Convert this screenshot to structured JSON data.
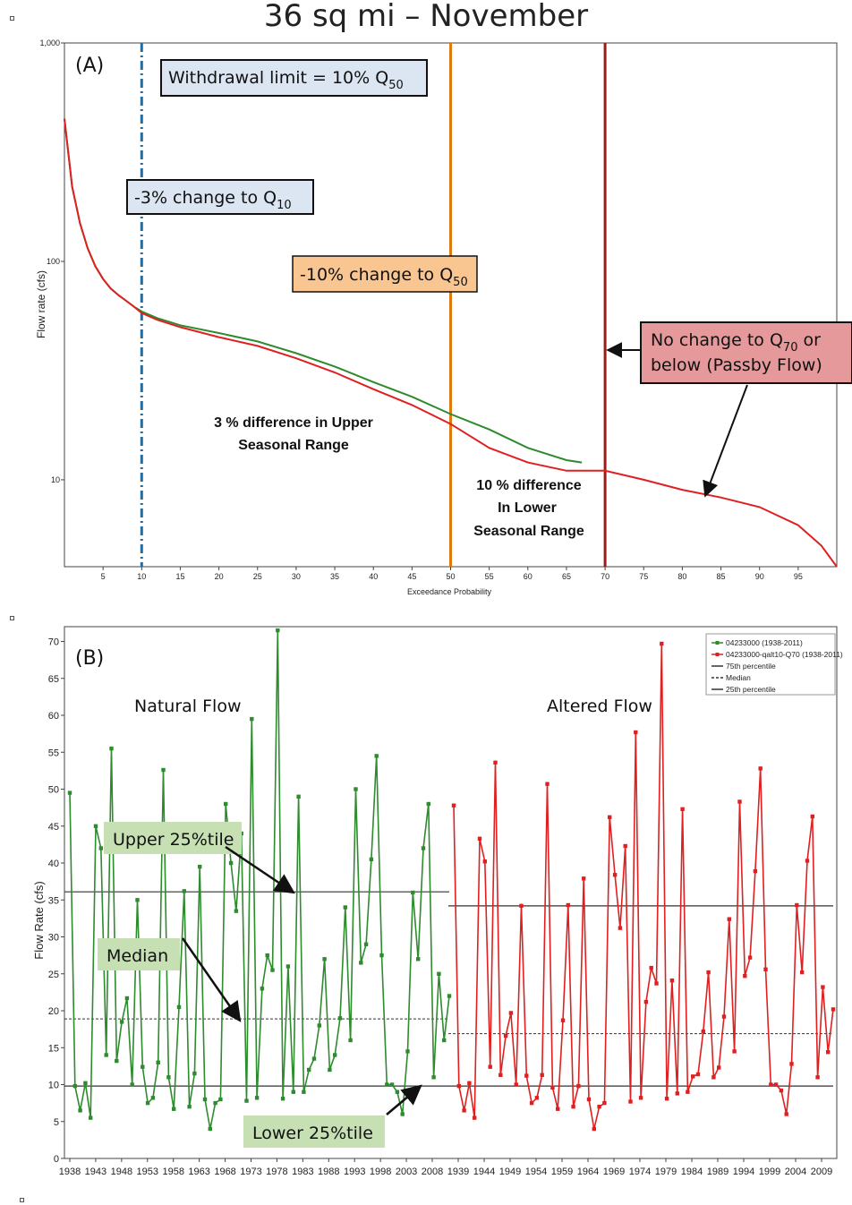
{
  "title": "36 sq mi – November",
  "chart_data": [
    {
      "panel": "(A)",
      "type": "line",
      "xlabel": "Exceedance Probability",
      "ylabel": "Flow rate (cfs)",
      "yscale": "log",
      "ylim": [
        4,
        1000
      ],
      "xlim": [
        0,
        100
      ],
      "x_ticks": [
        "5",
        "10",
        "15",
        "20",
        "25",
        "30",
        "35",
        "40",
        "45",
        "50",
        "55",
        "60",
        "65",
        "70",
        "75",
        "80",
        "85",
        "90",
        "95"
      ],
      "y_ticks": [
        "1,000",
        "100",
        "10"
      ],
      "series": [
        {
          "color": "#2e8b2e",
          "points": [
            [
              0,
              450
            ],
            [
              1,
              220
            ],
            [
              2,
              150
            ],
            [
              3,
              115
            ],
            [
              4,
              95
            ],
            [
              5,
              83
            ],
            [
              6,
              75
            ],
            [
              7,
              70
            ],
            [
              8,
              66
            ],
            [
              9,
              62
            ],
            [
              10,
              59
            ],
            [
              12,
              55
            ],
            [
              15,
              51
            ],
            [
              20,
              47
            ],
            [
              25,
              43
            ],
            [
              30,
              38
            ],
            [
              35,
              33
            ],
            [
              40,
              28
            ],
            [
              45,
              24
            ],
            [
              50,
              20
            ],
            [
              55,
              17
            ],
            [
              60,
              14
            ],
            [
              65,
              12.3
            ],
            [
              67,
              12
            ]
          ]
        },
        {
          "color": "#e02020",
          "points": [
            [
              0,
              450
            ],
            [
              1,
              220
            ],
            [
              2,
              150
            ],
            [
              3,
              115
            ],
            [
              4,
              95
            ],
            [
              5,
              83
            ],
            [
              6,
              75
            ],
            [
              7,
              70
            ],
            [
              8,
              66
            ],
            [
              9,
              62
            ],
            [
              10,
              58
            ],
            [
              12,
              54
            ],
            [
              15,
              50
            ],
            [
              20,
              45
            ],
            [
              25,
              41
            ],
            [
              30,
              36
            ],
            [
              35,
              31
            ],
            [
              40,
              26
            ],
            [
              45,
              22
            ],
            [
              50,
              18
            ],
            [
              55,
              14
            ],
            [
              60,
              12
            ],
            [
              65,
              11
            ],
            [
              70,
              11
            ],
            [
              75,
              10
            ],
            [
              80,
              9
            ],
            [
              85,
              8.3
            ],
            [
              90,
              7.5
            ],
            [
              95,
              6.2
            ],
            [
              98,
              5
            ],
            [
              100,
              4
            ]
          ]
        }
      ],
      "vlines": [
        {
          "x": 10,
          "color": "#1a6fb0",
          "style": "dashdot"
        },
        {
          "x": 50,
          "color": "#e07a10",
          "style": "solid"
        },
        {
          "x": 70,
          "color": "#a01818",
          "style": "solid"
        }
      ],
      "annotations": {
        "panel_label": "(A)",
        "withdrawal": "Withdrawal limit = 10% Q",
        "withdrawal_sub": "50",
        "q10": "-3% change to Q",
        "q10_sub": "10",
        "q50": "-10% change to Q",
        "q50_sub": "50",
        "no_change_1": "No change to Q",
        "no_change_1_sub": "70",
        "no_change_1_tail": " or",
        "no_change_2": "below (Passby Flow)",
        "upper_1": "3 % difference in Upper",
        "upper_2": "Seasonal Range",
        "lower_1": "10 % difference",
        "lower_2": "In Lower",
        "lower_3": "Seasonal Range"
      }
    },
    {
      "panel": "(B)",
      "type": "line",
      "ylabel": "Flow Rate (cfs)",
      "ylim": [
        0,
        72
      ],
      "y_ticks": [
        0,
        5,
        10,
        15,
        20,
        25,
        30,
        35,
        40,
        45,
        50,
        55,
        60,
        65,
        70
      ],
      "x_ticks_natural": [
        "1938",
        "1943",
        "1948",
        "1953",
        "1958",
        "1963",
        "1968",
        "1973",
        "1978",
        "1983",
        "1988",
        "1993",
        "1998",
        "2003",
        "2008"
      ],
      "x_ticks_altered": [
        "1939",
        "1944",
        "1949",
        "1954",
        "1959",
        "1964",
        "1969",
        "1974",
        "1979",
        "1984",
        "1989",
        "1994",
        "1999",
        "2004",
        "2009"
      ],
      "legend": [
        "04233000 (1938-2011)",
        "04233000-qalt10-Q70 (1938-2011)",
        "75th percentile",
        "Median",
        "25th percentile"
      ],
      "series": [
        {
          "name": "04233000 (1938-2011)",
          "color": "#2e8b2e",
          "years": [
            1938,
            2011
          ],
          "values": [
            49.5,
            9.8,
            6.5,
            10.2,
            5.5,
            45,
            42,
            14,
            55.5,
            13.2,
            18.5,
            21.7,
            10,
            35,
            12.4,
            7.5,
            8.2,
            13,
            52.6,
            11,
            6.7,
            20.5,
            36.2,
            7,
            11.5,
            39.5,
            8,
            4,
            7.5,
            8,
            48,
            40,
            33.5,
            44,
            7.8,
            59.5,
            8.2,
            23,
            27.5,
            25.5,
            71.5,
            8.1,
            26,
            9,
            49,
            9,
            12,
            13.5,
            18,
            27,
            12,
            14,
            19,
            34,
            16,
            50,
            26.5,
            29,
            40.5,
            54.5,
            27.5,
            10,
            10,
            9,
            6,
            14.5,
            36,
            27,
            42,
            48,
            11,
            25,
            16,
            22
          ]
        },
        {
          "name": "04233000-qalt10-Q70 (1938-2011)",
          "color": "#e02020",
          "years": [
            1938,
            2011
          ],
          "values": [
            47.8,
            9.8,
            6.5,
            10.2,
            5.5,
            43.3,
            40.2,
            12.4,
            53.6,
            11.3,
            16.6,
            19.7,
            10,
            34.2,
            11.2,
            7.5,
            8.2,
            11.3,
            50.7,
            9.6,
            6.7,
            18.7,
            34.3,
            7,
            9.8,
            37.9,
            8,
            4,
            7,
            7.5,
            46.2,
            38.4,
            31.2,
            42.3,
            7.7,
            57.7,
            8.2,
            21.2,
            25.8,
            23.7,
            69.7,
            8.1,
            24.1,
            8.8,
            47.3,
            9,
            11.1,
            11.4,
            17.2,
            25.2,
            11,
            12.3,
            19.2,
            32.4,
            14.5,
            48.3,
            24.7,
            27.2,
            38.9,
            52.8,
            25.6,
            10,
            10,
            9.2,
            6,
            12.8,
            34.3,
            25.2,
            40.3,
            46.3,
            11,
            23.2,
            14.4,
            20.2
          ]
        }
      ],
      "reference_lines": {
        "natural": {
          "p75": 36.1,
          "median": 18.9,
          "p25": 9.8
        },
        "altered": {
          "p75": 34.2,
          "median": 16.9,
          "p25": 9.8
        }
      },
      "annotations": {
        "panel_label": "(B)",
        "natural": "Natural Flow",
        "altered": "Altered Flow",
        "upper": "Upper 25%tile",
        "median": "Median",
        "lower": "Lower 25%tile"
      }
    }
  ]
}
